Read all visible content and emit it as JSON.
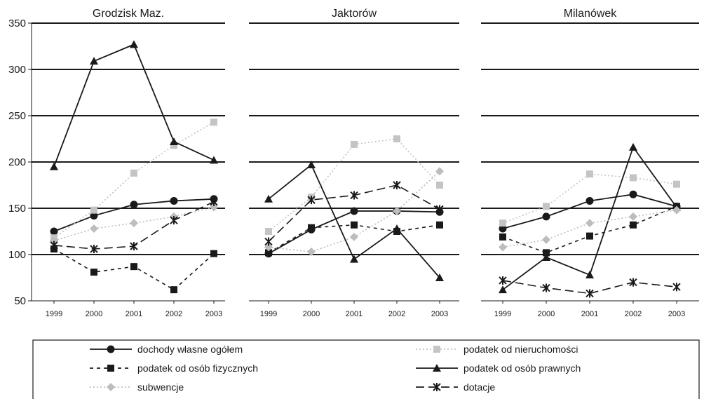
{
  "chart_data": {
    "type": "line",
    "ylim": [
      50,
      350
    ],
    "y_ticks": [
      "50",
      "100",
      "150",
      "200",
      "250",
      "300",
      "350"
    ],
    "grid": true,
    "legend_position": "bottom",
    "categories": [
      "1999",
      "2000",
      "2001",
      "2002",
      "2003"
    ],
    "series_styles": [
      {
        "key": "dochody",
        "color": "#1a1a1a",
        "marker": "circle",
        "dash": "solid"
      },
      {
        "key": "nieruch",
        "color": "#c4c4c4",
        "marker": "square",
        "dash": "dotted"
      },
      {
        "key": "fizyczne",
        "color": "#1a1a1a",
        "marker": "square",
        "dash": "dashed"
      },
      {
        "key": "prawne",
        "color": "#1a1a1a",
        "marker": "triangle",
        "dash": "solid"
      },
      {
        "key": "subwencje",
        "color": "#bdbdbd",
        "marker": "diamond",
        "dash": "dotted"
      },
      {
        "key": "dotacje",
        "color": "#1a1a1a",
        "marker": "star",
        "dash": "longdash"
      }
    ],
    "panels": [
      {
        "title": "Grodzisk Maz.",
        "series": [
          {
            "key": "dochody",
            "values": [
              125,
              142,
              154,
              158,
              160
            ]
          },
          {
            "key": "nieruch",
            "values": [
              118,
              148,
              188,
              218,
              243
            ]
          },
          {
            "key": "fizyczne",
            "values": [
              106,
              81,
              87,
              62,
              101
            ]
          },
          {
            "key": "prawne",
            "values": [
              195,
              309,
              327,
              222,
              202
            ]
          },
          {
            "key": "subwencje",
            "values": [
              115,
              128,
              134,
              141,
              151
            ]
          },
          {
            "key": "dotacje",
            "values": [
              110,
              106,
              109,
              137,
              157
            ]
          }
        ]
      },
      {
        "title": "Jaktorów",
        "series": [
          {
            "key": "dochody",
            "values": [
              101,
              127,
              147,
              147,
              146
            ]
          },
          {
            "key": "nieruch",
            "values": [
              125,
              162,
              219,
              225,
              175
            ]
          },
          {
            "key": "fizyczne",
            "values": [
              102,
              129,
              132,
              125,
              132
            ]
          },
          {
            "key": "prawne",
            "values": [
              160,
              197,
              95,
              128,
              75
            ]
          },
          {
            "key": "subwencje",
            "values": [
              108,
              103,
              119,
              147,
              190
            ]
          },
          {
            "key": "dotacje",
            "values": [
              114,
              159,
              164,
              175,
              149
            ]
          }
        ]
      },
      {
        "title": "Milanówek",
        "series": [
          {
            "key": "dochody",
            "values": [
              128,
              141,
              158,
              165,
              152
            ]
          },
          {
            "key": "nieruch",
            "values": [
              134,
              152,
              187,
              183,
              176
            ]
          },
          {
            "key": "fizyczne",
            "values": [
              119,
              102,
              120,
              132,
              152
            ]
          },
          {
            "key": "prawne",
            "values": [
              62,
              97,
              78,
              216,
              151
            ]
          },
          {
            "key": "subwencje",
            "values": [
              108,
              116,
              134,
              141,
              148
            ]
          },
          {
            "key": "dotacje",
            "values": [
              72,
              64,
              58,
              70,
              65
            ]
          }
        ]
      }
    ]
  },
  "legend": [
    {
      "key": "dochody",
      "label": "dochody własne ogółem"
    },
    {
      "key": "nieruch",
      "label": "podatek od nieruchomości"
    },
    {
      "key": "fizyczne",
      "label": "podatek od osób fizycznych"
    },
    {
      "key": "prawne",
      "label": "podatek od osób prawnych"
    },
    {
      "key": "subwencje",
      "label": "subwencje"
    },
    {
      "key": "dotacje",
      "label": "dotacje"
    }
  ]
}
